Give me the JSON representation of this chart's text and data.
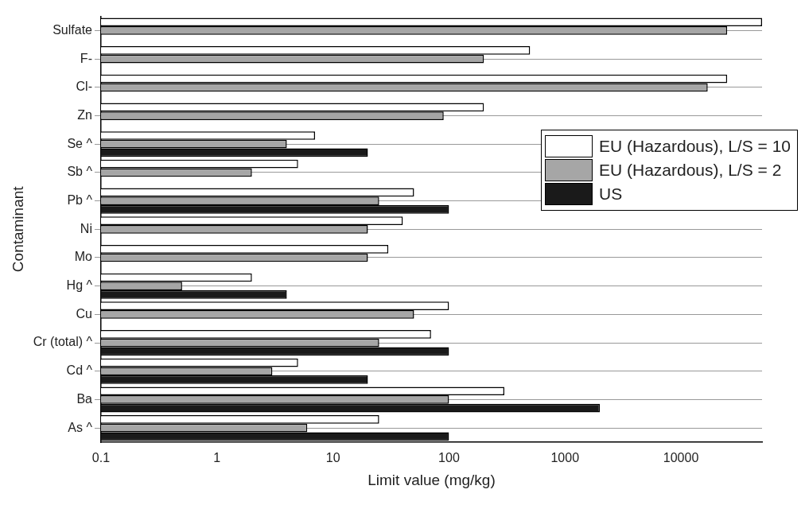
{
  "chart_data": {
    "type": "bar",
    "orientation": "horizontal",
    "xlabel": "Limit value (mg/kg)",
    "ylabel": "Contaminant",
    "categories": [
      "Sulfate",
      "F-",
      "Cl-",
      "Zn",
      "Se ^",
      "Sb ^",
      "Pb ^",
      "Ni",
      "Mo",
      "Hg ^",
      "Cu",
      "Cr (total) ^",
      "Cd ^",
      "Ba",
      "As ^"
    ],
    "series": [
      {
        "name": "EU (Hazardous), L/S = 10",
        "color": "#ffffff",
        "values": [
          50000,
          500,
          25000,
          200,
          7,
          5,
          50,
          40,
          30,
          2,
          100,
          70,
          5,
          300,
          25
        ]
      },
      {
        "name": "EU (Hazardous), L/S = 2",
        "color": "#a6a6a6",
        "values": [
          25000,
          200,
          17000,
          90,
          4,
          2,
          25,
          20,
          20,
          0.5,
          50,
          25,
          3,
          100,
          6
        ]
      },
      {
        "name": "US",
        "color": "#1a1a1a",
        "values": [
          null,
          null,
          null,
          null,
          20,
          null,
          100,
          null,
          null,
          4,
          null,
          100,
          20,
          2000,
          100
        ]
      }
    ],
    "log": "x",
    "xlim": [
      0.1,
      50000
    ],
    "xticks": [
      0.1,
      1,
      10,
      100,
      1000,
      10000
    ],
    "grid": "y",
    "legend": "top right"
  }
}
